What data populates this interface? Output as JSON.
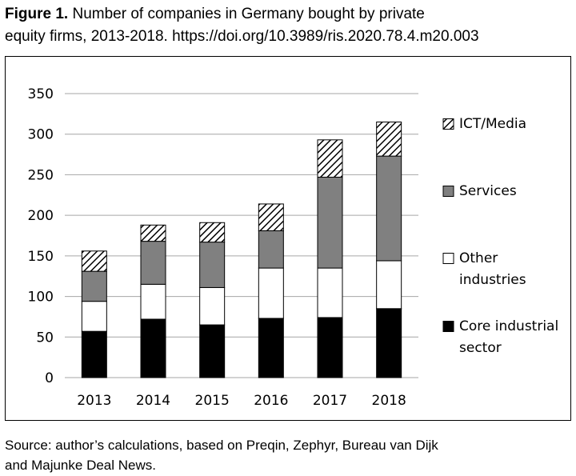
{
  "caption": {
    "figure_label": "Figure 1.",
    "title_line1": "Number of companies in Germany bought by private",
    "title_line2": "equity firms, 2013-2018. https://doi.org/10.3989/ris.2020.78.4.m20.003"
  },
  "source_note": {
    "line1": "Source: author’s calculations, based on Preqin, Zephyr, Bureau van Dijk",
    "line2": "and Majunke Deal News."
  },
  "chart_data": {
    "type": "bar",
    "stacked": true,
    "categories": [
      "2013",
      "2014",
      "2015",
      "2016",
      "2017",
      "2018"
    ],
    "ylim": [
      0,
      350
    ],
    "yticks": [
      0,
      50,
      100,
      150,
      200,
      250,
      300,
      350
    ],
    "grid": true,
    "legend_position": "right",
    "series": [
      {
        "name": "Core industrial sector",
        "name_lines": [
          "Core industrial",
          "sector"
        ],
        "fill": "solid",
        "color": "#000000",
        "values": [
          57,
          72,
          65,
          73,
          74,
          85
        ]
      },
      {
        "name": "Other industries",
        "name_lines": [
          "Other",
          "industries"
        ],
        "fill": "solid",
        "color": "#ffffff",
        "values": [
          37,
          43,
          46,
          62,
          61,
          59
        ]
      },
      {
        "name": "Services",
        "name_lines": [
          "Services"
        ],
        "fill": "solid",
        "color": "#808080",
        "values": [
          37,
          53,
          56,
          46,
          112,
          129
        ]
      },
      {
        "name": "ICT/Media",
        "name_lines": [
          "ICT/Media"
        ],
        "fill": "diagonal-hatch",
        "color": "#000000",
        "values": [
          25,
          20,
          24,
          33,
          46,
          42
        ]
      }
    ]
  }
}
